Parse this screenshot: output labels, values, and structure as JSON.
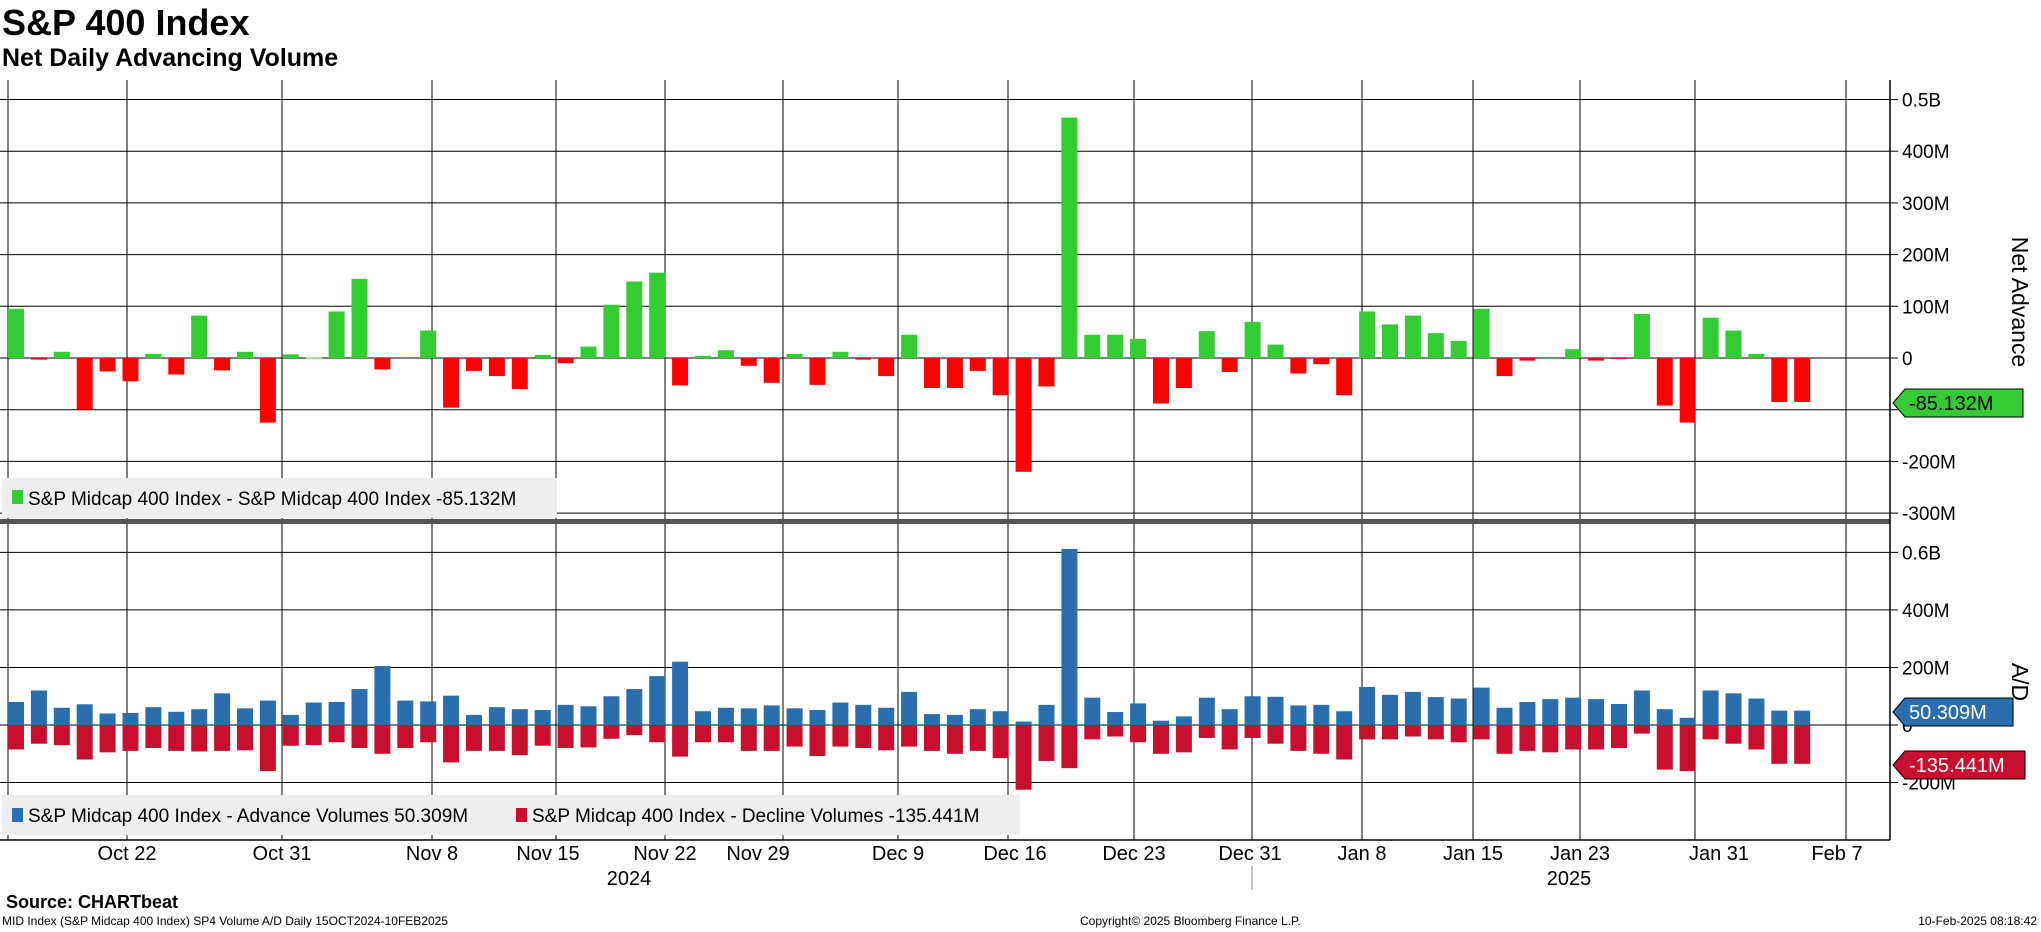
{
  "title": "S&P 400 Index",
  "subtitle": "Net Daily Advancing Volume",
  "source": "Source: CHARTbeat",
  "footer": {
    "left": "MID Index (S&P Midcap 400 Index) SP4 Volume A/D  Daily 15OCT2024-10FEB2025",
    "center": "Copyright© 2025 Bloomberg Finance L.P.",
    "right": "10-Feb-2025 08:18:42"
  },
  "colors": {
    "positive": "#33cc33",
    "negative": "#ff0000",
    "advance": "#2a6ead",
    "decline": "#c8102e",
    "grid": "#000000",
    "legend_bg": "#eeeeee"
  },
  "chart_data": [
    {
      "type": "bar",
      "panel": "top",
      "ylabel": "Net Advance",
      "ylim": [
        -310000000,
        510000000
      ],
      "yticks": [
        {
          "v": 500000000,
          "label": "0.5B"
        },
        {
          "v": 400000000,
          "label": "400M"
        },
        {
          "v": 300000000,
          "label": "300M"
        },
        {
          "v": 200000000,
          "label": "200M"
        },
        {
          "v": 100000000,
          "label": "100M"
        },
        {
          "v": 0,
          "label": "0"
        },
        {
          "v": -100000000,
          "label": "-100M"
        },
        {
          "v": -200000000,
          "label": "-200M"
        },
        {
          "v": -300000000,
          "label": "-300M"
        }
      ],
      "last_value_label": "-85.132M",
      "legend": [
        {
          "color": "#33cc33",
          "label": "S&P Midcap 400 Index - S&P Midcap 400 Index -85.132M"
        }
      ],
      "series": [
        {
          "name": "S&P Midcap 400 Index",
          "values": [
            95,
            -3,
            12,
            -100,
            -26,
            -45,
            8,
            -32,
            82,
            -24,
            12,
            -125,
            7,
            1,
            90,
            153,
            -22,
            2,
            53,
            -96,
            -25,
            -35,
            -60,
            6,
            -10,
            22,
            103,
            148,
            165,
            -53,
            4,
            15,
            -15,
            -48,
            8,
            -52,
            12,
            -3,
            -35,
            45,
            -58,
            -58,
            -25,
            -72,
            -220,
            -55,
            465,
            45,
            45,
            37,
            -88,
            -58,
            52,
            -27,
            70,
            26,
            -30,
            -12,
            -72,
            90,
            65,
            82,
            48,
            33,
            95,
            -35,
            -5,
            0,
            17,
            -5,
            -2,
            85,
            -92,
            -125,
            78,
            53,
            8,
            -85,
            -85
          ]
        }
      ]
    },
    {
      "type": "bar",
      "panel": "bottom",
      "ylabel": "A/D",
      "ylim": [
        -200000000,
        600000000
      ],
      "yticks": [
        {
          "v": 600000000,
          "label": "0.6B"
        },
        {
          "v": 400000000,
          "label": "400M"
        },
        {
          "v": 200000000,
          "label": "200M"
        },
        {
          "v": 0,
          "label": "0"
        },
        {
          "v": -200000000,
          "label": "-200M"
        }
      ],
      "advance_last_label": "50.309M",
      "decline_last_label": "-135.441M",
      "legend": [
        {
          "color": "#2a6ead",
          "label": "S&P Midcap 400 Index - Advance Volumes 50.309M"
        },
        {
          "color": "#c8102e",
          "label": "S&P Midcap 400 Index - Decline Volumes -135.441M"
        }
      ],
      "series": [
        {
          "name": "S&P Midcap 400 Index - Advance Volumes",
          "values": [
            80,
            120,
            60,
            72,
            40,
            42,
            62,
            46,
            55,
            110,
            58,
            85,
            35,
            78,
            80,
            125,
            205,
            85,
            82,
            102,
            35,
            62,
            55,
            52,
            70,
            65,
            100,
            125,
            170,
            220,
            48,
            60,
            58,
            68,
            58,
            52,
            78,
            70,
            60,
            115,
            38,
            35,
            55,
            48,
            12,
            70,
            612,
            95,
            45,
            75,
            15,
            30,
            95,
            55,
            100,
            98,
            68,
            70,
            48,
            132,
            105,
            115,
            97,
            92,
            130,
            60,
            80,
            90,
            95,
            90,
            73,
            120,
            55,
            25,
            120,
            110,
            92,
            50,
            50
          ]
        },
        {
          "name": "S&P Midcap 400 Index - Decline Volumes",
          "values": [
            -85,
            -65,
            -70,
            -120,
            -95,
            -90,
            -80,
            -90,
            -92,
            -90,
            -88,
            -160,
            -72,
            -70,
            -60,
            -80,
            -100,
            -80,
            -60,
            -130,
            -90,
            -90,
            -105,
            -72,
            -80,
            -78,
            -48,
            -35,
            -60,
            -110,
            -60,
            -60,
            -90,
            -90,
            -75,
            -108,
            -75,
            -80,
            -88,
            -75,
            -90,
            -100,
            -90,
            -115,
            -225,
            -125,
            -150,
            -50,
            -40,
            -60,
            -100,
            -95,
            -45,
            -85,
            -45,
            -65,
            -90,
            -100,
            -120,
            -50,
            -50,
            -40,
            -50,
            -60,
            -50,
            -100,
            -90,
            -95,
            -85,
            -85,
            -80,
            -30,
            -155,
            -160,
            -50,
            -65,
            -85,
            -135,
            -135
          ]
        }
      ]
    }
  ],
  "x_axis": {
    "tick_labels": [
      "Oct 22",
      "Oct 31",
      "Nov 8",
      "Nov 15",
      "Nov 22",
      "Nov 29",
      "Dec 9",
      "Dec 16",
      "Dec 23",
      "Dec 31",
      "Jan 8",
      "Jan 15",
      "Jan 23",
      "Jan 31",
      "Feb 7"
    ],
    "year_labels": [
      "2024",
      "2025"
    ]
  }
}
